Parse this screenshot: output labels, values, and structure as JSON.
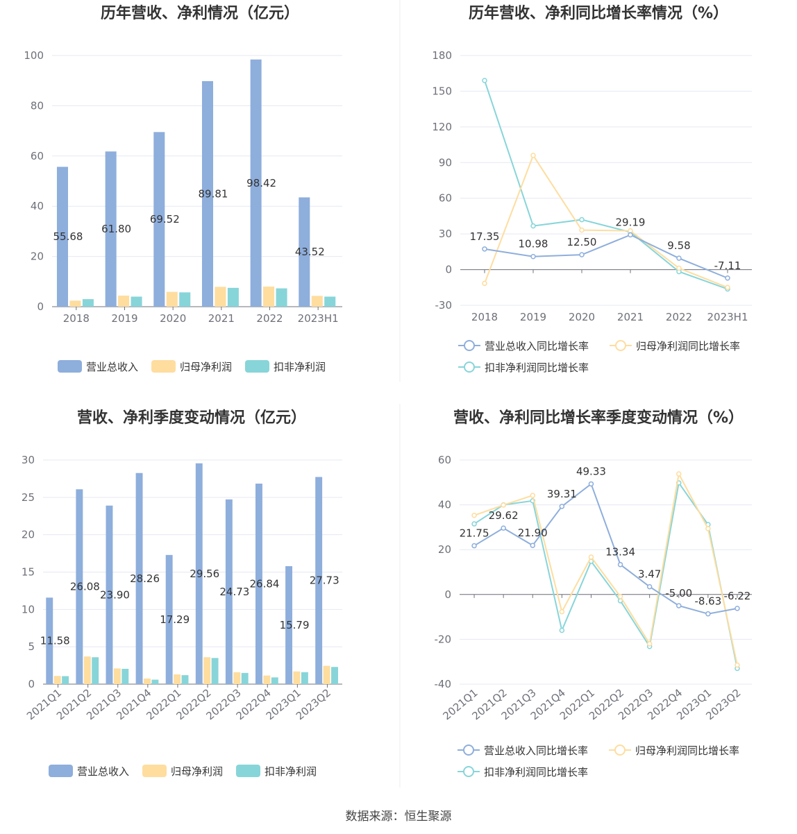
{
  "footer": "数据来源：恒生聚源",
  "colors": {
    "revenue": "#8eaedc",
    "parent_profit": "#fedd9f",
    "deducted_profit": "#87d5d9"
  },
  "chart_data": [
    {
      "type": "bar",
      "title": "历年营收、净利情况（亿元）",
      "categories": [
        "2018",
        "2019",
        "2020",
        "2021",
        "2022",
        "2023H1"
      ],
      "ylim": [
        0,
        100
      ],
      "yticks": [
        0,
        20,
        40,
        60,
        80,
        100
      ],
      "legend_position": "bottom",
      "series": [
        {
          "name": "营业总收入",
          "values": [
            55.68,
            61.8,
            69.52,
            89.81,
            98.42,
            43.52
          ],
          "labels": [
            "55.68",
            "61.80",
            "69.52",
            "89.81",
            "98.42",
            "43.52"
          ]
        },
        {
          "name": "归母净利润",
          "values": [
            2.4,
            4.4,
            5.9,
            7.9,
            8.0,
            4.3
          ]
        },
        {
          "name": "扣非净利润",
          "values": [
            3.0,
            4.0,
            5.7,
            7.5,
            7.3,
            4.0
          ]
        }
      ]
    },
    {
      "type": "line",
      "title": "历年营收、净利同比增长率情况（%）",
      "categories": [
        "2018",
        "2019",
        "2020",
        "2021",
        "2022",
        "2023H1"
      ],
      "ylim": [
        -30,
        180
      ],
      "yticks": [
        -30,
        0,
        30,
        60,
        90,
        120,
        150,
        180
      ],
      "legend_position": "bottom",
      "series": [
        {
          "name": "营业总收入同比增长率",
          "values": [
            17.35,
            10.98,
            12.5,
            29.19,
            9.58,
            -7.11
          ],
          "labels": [
            "17.35",
            "10.98",
            "12.50",
            "29.19",
            "9.58",
            "-7.11"
          ]
        },
        {
          "name": "归母净利润同比增长率",
          "values": [
            -11.6,
            96,
            33.2,
            32.6,
            1.2,
            -15
          ]
        },
        {
          "name": "扣非净利润同比增长率",
          "values": [
            159,
            36.7,
            42,
            31.5,
            -1.7,
            -16.3
          ]
        }
      ]
    },
    {
      "type": "bar",
      "title": "营收、净利季度变动情况（亿元）",
      "categories": [
        "2021Q1",
        "2021Q2",
        "2021Q3",
        "2021Q4",
        "2022Q1",
        "2022Q2",
        "2022Q3",
        "2022Q4",
        "2023Q1",
        "2023Q2"
      ],
      "ylim": [
        0,
        30
      ],
      "yticks": [
        0,
        5,
        10,
        15,
        20,
        25,
        30
      ],
      "legend_position": "bottom",
      "series": [
        {
          "name": "营业总收入",
          "values": [
            11.58,
            26.08,
            23.9,
            28.26,
            17.29,
            29.56,
            24.73,
            26.84,
            15.79,
            27.73
          ],
          "labels": [
            "11.58",
            "26.08",
            "23.90",
            "28.26",
            "17.29",
            "29.56",
            "24.73",
            "26.84",
            "15.79",
            "27.73"
          ]
        },
        {
          "name": "归母净利润",
          "values": [
            1.1,
            3.7,
            2.1,
            0.75,
            1.3,
            3.6,
            1.6,
            1.15,
            1.7,
            2.45
          ]
        },
        {
          "name": "扣非净利润",
          "values": [
            1.07,
            3.6,
            2.05,
            0.6,
            1.2,
            3.5,
            1.5,
            0.9,
            1.6,
            2.3
          ]
        }
      ]
    },
    {
      "type": "line",
      "title": "营收、净利同比增长率季度变动情况（%）",
      "categories": [
        "2021Q1",
        "2021Q2",
        "2021Q3",
        "2021Q4",
        "2022Q1",
        "2022Q2",
        "2022Q3",
        "2022Q4",
        "2023Q1",
        "2023Q2"
      ],
      "ylim": [
        -40,
        60
      ],
      "yticks": [
        -40,
        -20,
        0,
        20,
        40,
        60
      ],
      "legend_position": "bottom",
      "series": [
        {
          "name": "营业总收入同比增长率",
          "values": [
            21.75,
            29.62,
            21.9,
            39.31,
            49.33,
            13.34,
            3.47,
            -5.0,
            -8.63,
            -6.22
          ],
          "labels": [
            "21.75",
            "29.62",
            "21.90",
            "39.31",
            "49.33",
            "13.34",
            "3.47",
            "-5.00",
            "-8.63",
            "-6.22"
          ]
        },
        {
          "name": "归母净利润同比增长率",
          "values": [
            35.3,
            39.9,
            44.2,
            -7.7,
            16.7,
            -0.9,
            -22,
            53.8,
            29.4,
            -31.5
          ]
        },
        {
          "name": "扣非净利润同比增长率",
          "values": [
            31.5,
            40,
            41.8,
            -16,
            14.8,
            -2.8,
            -23.2,
            49.8,
            31.2,
            -33
          ]
        }
      ]
    }
  ]
}
